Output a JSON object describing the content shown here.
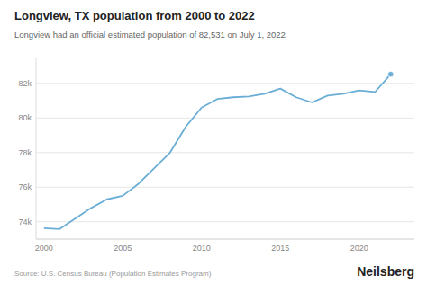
{
  "chart_data": {
    "type": "line",
    "title": "Longview, TX population from 2000 to 2022",
    "subtitle": "Longview had an official estimated population of 82,531 on July 1, 2022",
    "annotations": [
      "Source: U.S. Census Bureau (Population Estimates Program)",
      "Neilsberg"
    ],
    "x": [
      2000,
      2001,
      2002,
      2003,
      2004,
      2005,
      2006,
      2007,
      2008,
      2009,
      2010,
      2011,
      2012,
      2013,
      2014,
      2015,
      2016,
      2017,
      2018,
      2019,
      2020,
      2021,
      2022
    ],
    "values": [
      73630,
      73580,
      74200,
      74800,
      75300,
      75500,
      76200,
      77100,
      78000,
      79500,
      80600,
      81100,
      81200,
      81250,
      81400,
      81700,
      81200,
      80900,
      81300,
      81400,
      81600,
      81500,
      82531
    ],
    "color": "#6aaed6",
    "xlim": [
      1999.5,
      2023.5
    ],
    "xticks": [
      2000,
      2005,
      2010,
      2015,
      2020
    ],
    "ylim": [
      73000,
      83500
    ],
    "yticks": [
      {
        "value": 74000,
        "label": "74k"
      },
      {
        "value": 76000,
        "label": "76k"
      },
      {
        "value": 78000,
        "label": "78k"
      },
      {
        "value": 80000,
        "label": "80k"
      },
      {
        "value": 82000,
        "label": "82k"
      }
    ],
    "grid": true
  }
}
